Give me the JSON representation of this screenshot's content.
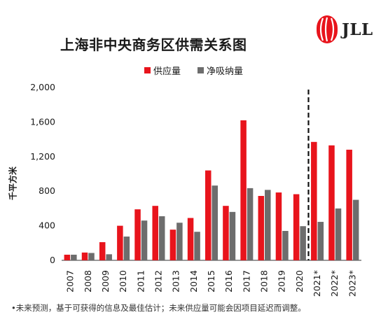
{
  "logo": {
    "text": "JLL"
  },
  "chart_data": {
    "type": "bar",
    "title": "上海非中央商务区供需关系图",
    "ylabel": "千平方米",
    "xlabel": "",
    "ylim": [
      0,
      2000
    ],
    "yticks": [
      0,
      400,
      800,
      1200,
      1600,
      2000
    ],
    "ytick_labels": [
      "0",
      "400",
      "800",
      "1,200",
      "1,600",
      "2,000"
    ],
    "categories": [
      "2007",
      "2008",
      "2009",
      "2010",
      "2011",
      "2012",
      "2013",
      "2014",
      "2015",
      "2016",
      "2017",
      "2018",
      "2019",
      "2020",
      "2021*",
      "2022*",
      "2023*"
    ],
    "series": [
      {
        "name": "供应量",
        "color": "#e8141c",
        "values": [
          65,
          90,
          210,
          400,
          590,
          630,
          355,
          490,
          1040,
          630,
          1620,
          745,
          785,
          765,
          1370,
          1330,
          1280
        ]
      },
      {
        "name": "净吸纳量",
        "color": "#6d6d6d",
        "values": [
          65,
          85,
          70,
          275,
          460,
          510,
          435,
          330,
          865,
          560,
          835,
          815,
          340,
          395,
          445,
          600,
          700
        ]
      }
    ],
    "forecast_divider_after": "2020",
    "grid": false,
    "legend_position": "top"
  },
  "footnote": "•未来预测，基于可获得的信息及最佳估计；未来供应量可能会因项目延迟而调整。"
}
